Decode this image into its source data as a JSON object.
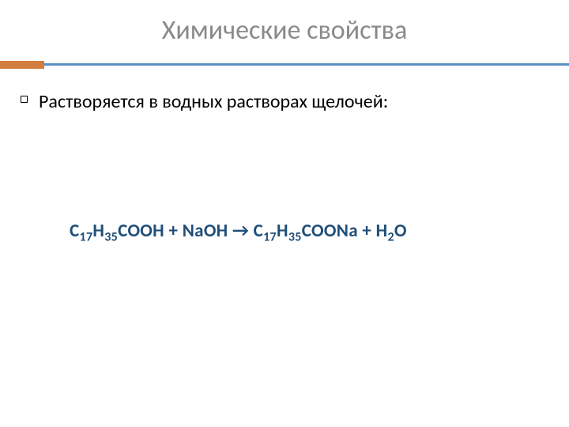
{
  "slide": {
    "title": "Химические свойства",
    "title_color": "#8a8a8a",
    "title_fontsize": 34,
    "divider": {
      "accent_color": "#d37c3f",
      "accent_width": 56,
      "accent_height": 10,
      "line_color": "#5a8fc8",
      "line_height": 3
    },
    "bullet_text": "Растворяется в водных растворах щелочей:",
    "bullet_fontsize": 24,
    "equation": {
      "color": "#1f4e79",
      "fontsize": 23,
      "parts": [
        {
          "t": "C",
          "sub": null
        },
        {
          "t": "17",
          "sub": true
        },
        {
          "t": "H",
          "sub": null
        },
        {
          "t": "35",
          "sub": true
        },
        {
          "t": "COOH + NaOH → C",
          "sub": null
        },
        {
          "t": "17",
          "sub": true
        },
        {
          "t": "H",
          "sub": null
        },
        {
          "t": "35",
          "sub": true
        },
        {
          "t": "COONa + H",
          "sub": null
        },
        {
          "t": "2",
          "sub": true
        },
        {
          "t": "O",
          "sub": null
        }
      ]
    },
    "background_color": "#ffffff"
  }
}
